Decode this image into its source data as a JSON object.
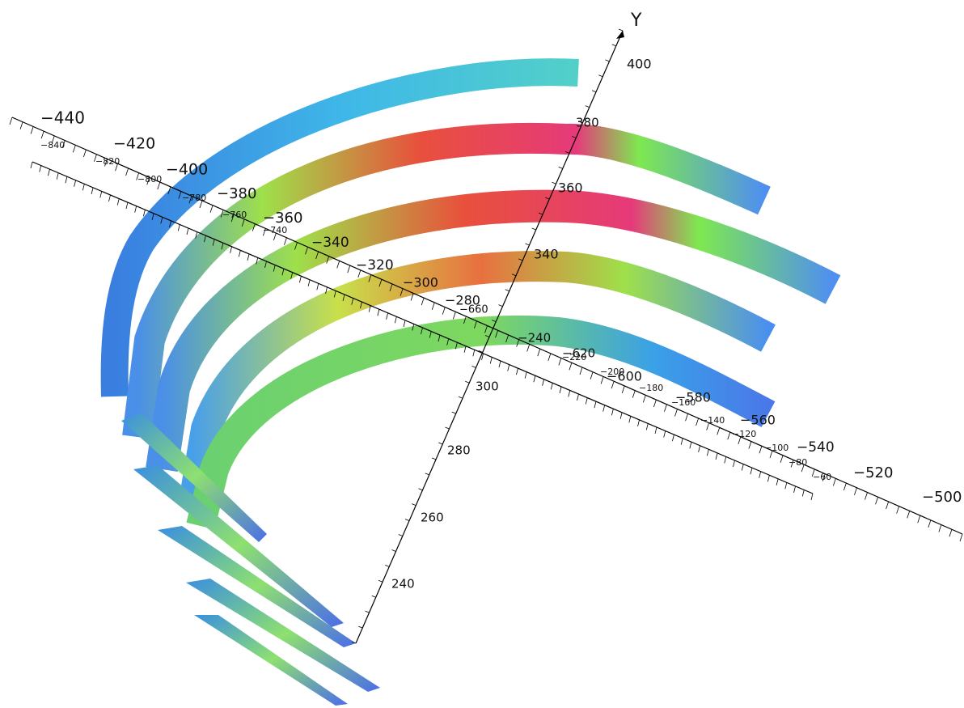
{
  "axes": {
    "y": {
      "label": "Y",
      "ticks": [
        "400",
        "380",
        "360",
        "340",
        "300",
        "280",
        "260",
        "240"
      ]
    },
    "a": {
      "ticks": [
        "−440",
        "−420",
        "−400",
        "−380",
        "−360",
        "−340",
        "−320",
        "−300",
        "−280",
        "−240"
      ]
    },
    "b": {
      "ticks": [
        "−840",
        "−820",
        "−800",
        "−780",
        "−760",
        "−740",
        "−660",
        "−620",
        "−600",
        "−580",
        "−560",
        "−540",
        "−520",
        "−500"
      ]
    },
    "c": {
      "ticks": [
        "−220",
        "−200",
        "−180",
        "−160",
        "−140",
        "−120",
        "−100",
        "−80",
        "−60"
      ]
    }
  }
}
